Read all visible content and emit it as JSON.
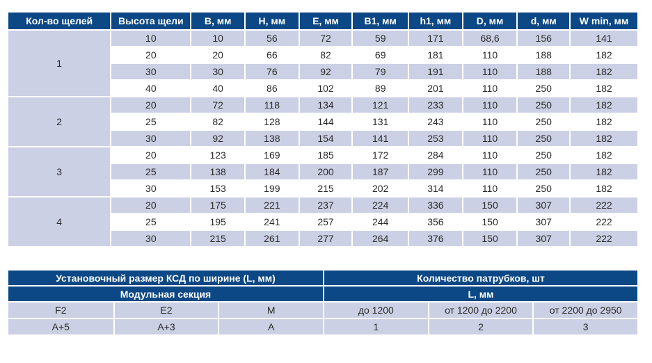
{
  "dims_table": {
    "headers": [
      "Кол-во щелей",
      "Высота щели",
      "B, мм",
      "H, мм",
      "E, мм",
      "B1, мм",
      "h1, мм",
      "D, мм",
      "d, мм",
      "W min, мм"
    ],
    "groups": [
      {
        "slots": "1",
        "rows": [
          [
            "10",
            "10",
            "56",
            "72",
            "59",
            "171",
            "68,6",
            "156",
            "141"
          ],
          [
            "20",
            "20",
            "66",
            "82",
            "69",
            "181",
            "110",
            "188",
            "182"
          ],
          [
            "30",
            "30",
            "76",
            "92",
            "79",
            "191",
            "110",
            "188",
            "182"
          ],
          [
            "40",
            "40",
            "86",
            "102",
            "89",
            "201",
            "110",
            "250",
            "182"
          ]
        ]
      },
      {
        "slots": "2",
        "rows": [
          [
            "20",
            "72",
            "118",
            "134",
            "121",
            "233",
            "110",
            "250",
            "182"
          ],
          [
            "25",
            "82",
            "128",
            "144",
            "131",
            "243",
            "110",
            "250",
            "182"
          ],
          [
            "30",
            "92",
            "138",
            "154",
            "141",
            "253",
            "110",
            "250",
            "182"
          ]
        ]
      },
      {
        "slots": "3",
        "rows": [
          [
            "20",
            "123",
            "169",
            "185",
            "172",
            "284",
            "110",
            "250",
            "182"
          ],
          [
            "25",
            "138",
            "184",
            "200",
            "187",
            "299",
            "110",
            "250",
            "182"
          ],
          [
            "30",
            "153",
            "199",
            "215",
            "202",
            "314",
            "110",
            "250",
            "182"
          ]
        ]
      },
      {
        "slots": "4",
        "rows": [
          [
            "20",
            "175",
            "221",
            "237",
            "224",
            "336",
            "150",
            "307",
            "222"
          ],
          [
            "25",
            "195",
            "241",
            "257",
            "244",
            "356",
            "150",
            "307",
            "222"
          ],
          [
            "30",
            "215",
            "261",
            "277",
            "264",
            "376",
            "150",
            "307",
            "222"
          ]
        ]
      }
    ]
  },
  "install_table": {
    "left_title": "Установочный размер КСД по ширине (L, мм)",
    "right_title": "Количество патрубков, шт",
    "left_subtitle": "Модульная секция",
    "right_subtitle": "L, мм",
    "left_columns": [
      "F2",
      "E2",
      "M"
    ],
    "left_values": [
      "A+5",
      "A+3",
      "A"
    ],
    "right_columns": [
      "до 1200",
      "от 1200 до 2200",
      "от 2200 до 2950"
    ],
    "right_values": [
      "1",
      "2",
      "3"
    ]
  }
}
